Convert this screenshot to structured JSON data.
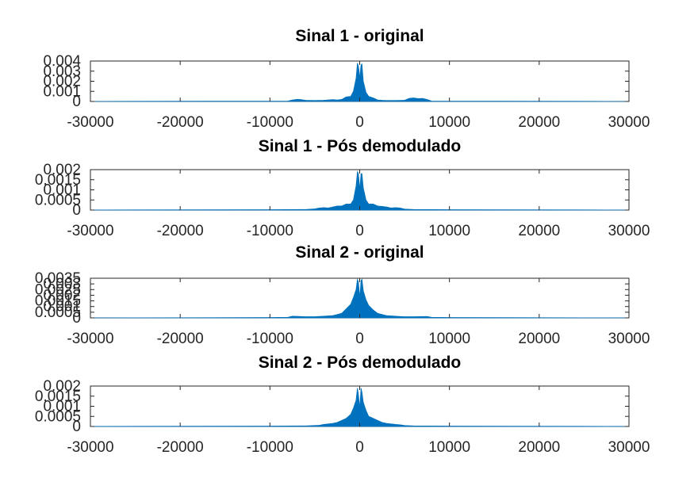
{
  "chart_data": [
    {
      "type": "area",
      "title": "Sinal 1 - original",
      "xlim": [
        -30000,
        30000
      ],
      "ylim": [
        0,
        0.004
      ],
      "xticks": [
        "-30000",
        "-20000",
        "-10000",
        "0",
        "10000",
        "20000",
        "30000"
      ],
      "yticks": [
        "0",
        "0.001",
        "0.002",
        "0.003",
        "0.004"
      ],
      "series_color": "#0072BD",
      "x": [
        -30000,
        -25000,
        -10000,
        -8000,
        -7500,
        -7000,
        -6500,
        -6000,
        -5000,
        -4000,
        -3000,
        -2500,
        -2000,
        -1500,
        -1000,
        -700,
        -400,
        -250,
        -150,
        -80,
        0,
        80,
        150,
        250,
        400,
        700,
        1000,
        1500,
        2000,
        2500,
        3000,
        4000,
        5000,
        5500,
        6000,
        6500,
        7000,
        7500,
        8000,
        10000,
        25000,
        30000
      ],
      "y": [
        0,
        2e-05,
        3e-05,
        4e-05,
        0.00015,
        0.0002,
        0.00018,
        0.00012,
        0.0001,
        0.00012,
        0.00018,
        0.00015,
        0.0002,
        0.00045,
        0.0005,
        0.001,
        0.0023,
        0.0038,
        0.0035,
        0.0031,
        0.0022,
        0.003,
        0.0036,
        0.0037,
        0.002,
        0.0009,
        0.0005,
        0.00035,
        0.00015,
        0.00012,
        0.0001,
        0.0001,
        0.00012,
        0.0003,
        0.00035,
        0.00028,
        0.0003,
        0.0002,
        4e-05,
        3e-05,
        2e-05,
        0
      ]
    },
    {
      "type": "area",
      "title": "Sinal 1 - Pós demodulado",
      "xlim": [
        -30000,
        30000
      ],
      "ylim": [
        0,
        0.002
      ],
      "xticks": [
        "-30000",
        "-20000",
        "-10000",
        "0",
        "10000",
        "20000",
        "30000"
      ],
      "yticks": [
        "0",
        "0.0005",
        "0.001",
        "0.0015",
        "0.002"
      ],
      "series_color": "#0072BD",
      "x": [
        -30000,
        -25000,
        -10000,
        -6000,
        -5000,
        -4500,
        -4000,
        -3500,
        -3000,
        -2500,
        -2000,
        -1500,
        -1000,
        -700,
        -400,
        -250,
        -150,
        -80,
        0,
        80,
        150,
        250,
        400,
        700,
        1000,
        1500,
        2000,
        2500,
        3000,
        3500,
        4000,
        4500,
        5000,
        6000,
        10000,
        25000,
        30000
      ],
      "y": [
        0,
        1e-05,
        2e-05,
        3e-05,
        6e-05,
        0.0001,
        0.00012,
        0.0001,
        0.00015,
        0.0002,
        0.0002,
        0.0003,
        0.0003,
        0.0005,
        0.0012,
        0.0019,
        0.0018,
        0.0015,
        0.001,
        0.0014,
        0.0018,
        0.0018,
        0.0011,
        0.0005,
        0.0003,
        0.0003,
        0.0002,
        0.00018,
        0.00015,
        0.0001,
        0.00012,
        0.0001,
        5e-05,
        3e-05,
        2e-05,
        1e-05,
        0
      ]
    },
    {
      "type": "area",
      "title": "Sinal 2 - original",
      "xlim": [
        -30000,
        30000
      ],
      "ylim": [
        0,
        0.0035
      ],
      "xticks": [
        "-30000",
        "-20000",
        "-10000",
        "0",
        "10000",
        "20000",
        "30000"
      ],
      "yticks": [
        "0",
        "0.0005",
        "0.001",
        "0.0015",
        "0.002",
        "0.0025",
        "0.003",
        "0.0035"
      ],
      "series_color": "#0072BD",
      "x": [
        -30000,
        -25000,
        -10000,
        -8000,
        -7500,
        -6000,
        -5000,
        -4000,
        -3000,
        -2500,
        -2000,
        -1500,
        -1000,
        -700,
        -400,
        -250,
        -150,
        -80,
        0,
        80,
        150,
        250,
        400,
        700,
        1000,
        1500,
        2000,
        2500,
        3000,
        4000,
        5000,
        6000,
        7500,
        8000,
        10000,
        25000,
        30000
      ],
      "y": [
        0,
        1e-05,
        3e-05,
        5e-05,
        0.00015,
        0.0001,
        0.0001,
        0.00015,
        0.0002,
        0.0003,
        0.0004,
        0.0008,
        0.0012,
        0.0018,
        0.0025,
        0.0034,
        0.0032,
        0.0026,
        0.0018,
        0.0025,
        0.0033,
        0.0034,
        0.0024,
        0.0016,
        0.0011,
        0.0007,
        0.0004,
        0.0003,
        0.0002,
        0.00015,
        0.0001,
        0.0001,
        0.00012,
        5e-05,
        3e-05,
        1e-05,
        0
      ]
    },
    {
      "type": "area",
      "title": "Sinal 2 - Pós demodulado",
      "xlim": [
        -30000,
        30000
      ],
      "ylim": [
        0,
        0.002
      ],
      "xticks": [
        "-30000",
        "-20000",
        "-10000",
        "0",
        "10000",
        "20000",
        "30000"
      ],
      "yticks": [
        "0",
        "0.0005",
        "0.001",
        "0.0015",
        "0.002"
      ],
      "series_color": "#0072BD",
      "x": [
        -30000,
        -25000,
        -10000,
        -6000,
        -5000,
        -4500,
        -4000,
        -3000,
        -2500,
        -2000,
        -1500,
        -1000,
        -700,
        -400,
        -250,
        -150,
        -80,
        0,
        80,
        150,
        250,
        400,
        700,
        1000,
        1500,
        2000,
        2500,
        3000,
        4000,
        4500,
        5000,
        6000,
        10000,
        25000,
        30000
      ],
      "y": [
        0,
        1e-05,
        2e-05,
        3e-05,
        5e-05,
        6e-05,
        0.0001,
        0.00015,
        0.0002,
        0.0003,
        0.0004,
        0.0006,
        0.0009,
        0.0013,
        0.0019,
        0.0016,
        0.0013,
        0.0009,
        0.0014,
        0.0019,
        0.0017,
        0.0012,
        0.0008,
        0.0005,
        0.0004,
        0.0003,
        0.0002,
        0.00015,
        0.0001,
        8e-05,
        5e-05,
        3e-05,
        2e-05,
        1e-05,
        0
      ]
    }
  ]
}
